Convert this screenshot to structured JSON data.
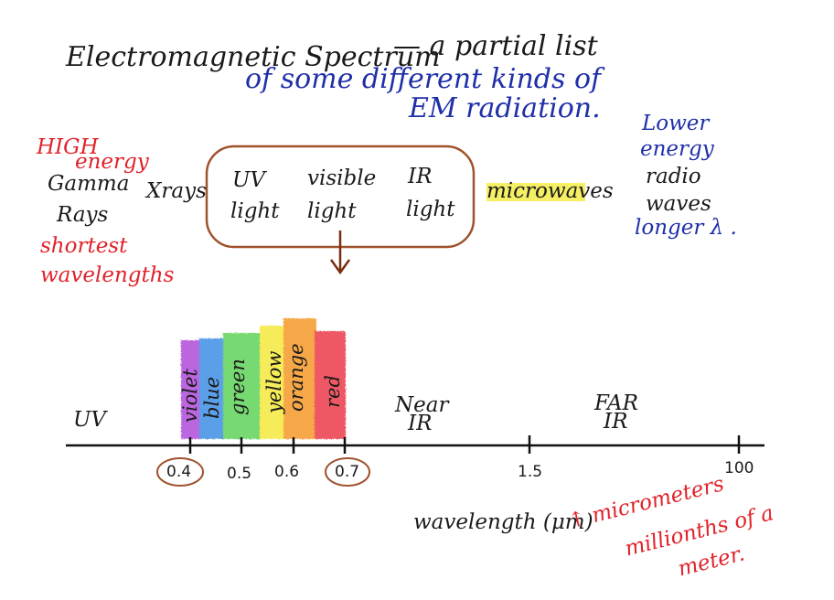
{
  "title": {
    "line1": "Electromagnetic Spectrum",
    "line2": "— a partial list",
    "line3": "of some different kinds of",
    "line4": "EM radiation."
  },
  "left": {
    "high_energy": [
      "HIGH",
      "energy"
    ],
    "gamma": [
      "Gamma",
      "Rays"
    ],
    "shortest": [
      "shortest",
      "wavelengths"
    ]
  },
  "bands": {
    "xrays": "Xrays",
    "uv": [
      "UV",
      "light"
    ],
    "visible": [
      "visible",
      "light"
    ],
    "ir": [
      "IR",
      "light"
    ],
    "microwaves": "microwaves"
  },
  "right": {
    "lower_energy": [
      "Lower",
      "energy"
    ],
    "radio": [
      "radio",
      "waves"
    ],
    "longer": "longer λ ."
  },
  "axis": {
    "uv_label": "UV",
    "near_ir": [
      "Near",
      "IR"
    ],
    "far_ir": [
      "FAR",
      "IR"
    ],
    "colors": [
      "violet",
      "blue",
      "green",
      "yellow",
      "orange",
      "red"
    ],
    "ticks": [
      "0.4",
      "0.5",
      "0.6",
      "0.7",
      "1.5",
      "100"
    ],
    "xlabel": "wavelength (μm)",
    "note": [
      "↑ micrometers",
      "millionths of a",
      "meter."
    ]
  },
  "colors": {
    "violet": "#b04bd9",
    "blue": "#3f8fe6",
    "green": "#5fd35a",
    "yellow": "#f5e83a",
    "orange": "#f59a2a",
    "red": "#ea3a4a",
    "highlight": "#f3ec4a",
    "bracket": "#a0522d"
  }
}
